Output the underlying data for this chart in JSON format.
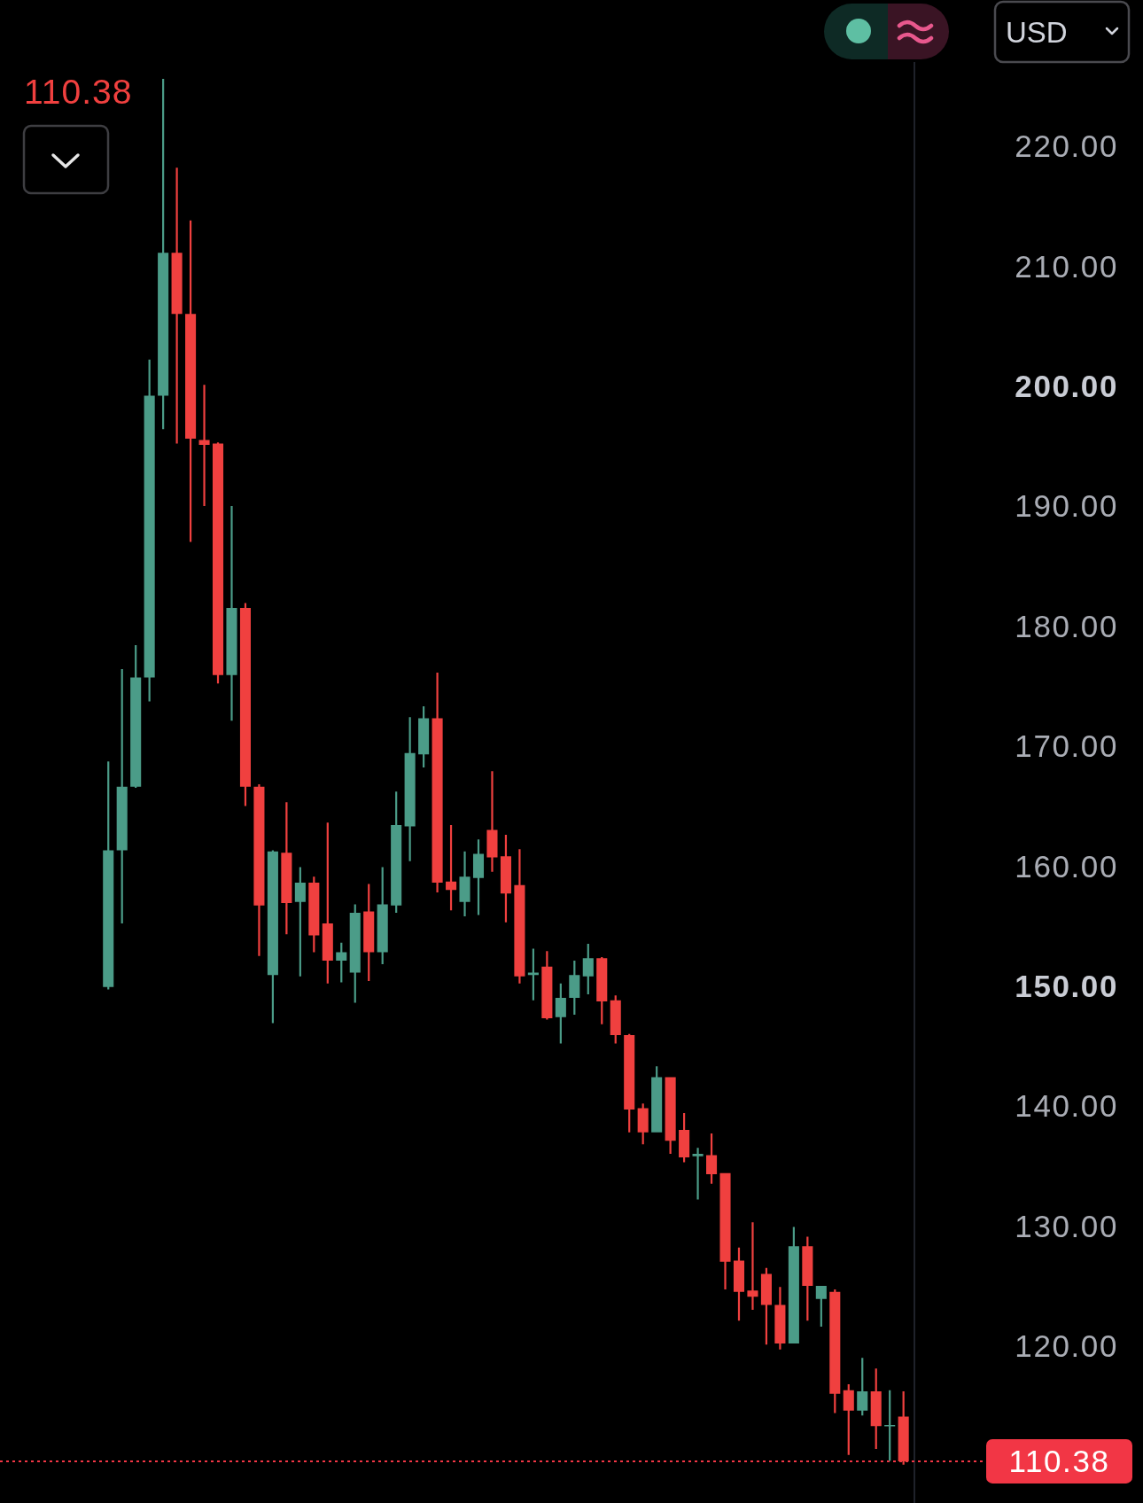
{
  "chart_data": {
    "type": "candlestick",
    "ylabel": "USD",
    "annotations": [
      "110.38"
    ],
    "categories": [
      null,
      null,
      null,
      null,
      null,
      null,
      null,
      null,
      null,
      null,
      null,
      null,
      null,
      null,
      null,
      null,
      null,
      null,
      null,
      null,
      null,
      null,
      null,
      null,
      null,
      null,
      null,
      null,
      null,
      null,
      null,
      null,
      null,
      null,
      null,
      null,
      null,
      null,
      null,
      null,
      null,
      null,
      null,
      null,
      null,
      null,
      null,
      null,
      null,
      null,
      null,
      null,
      null,
      null,
      null,
      null,
      null,
      null,
      null
    ],
    "ohlc": [
      [
        149.9,
        168.7,
        149.7,
        161.3
      ],
      [
        161.3,
        176.4,
        155.2,
        166.6
      ],
      [
        166.6,
        178.4,
        166.5,
        175.7
      ],
      [
        175.7,
        202.2,
        173.7,
        199.2
      ],
      [
        199.2,
        225.6,
        196.4,
        211.1
      ],
      [
        211.1,
        218.2,
        195.2,
        206.0
      ],
      [
        206.0,
        213.8,
        187.0,
        195.6
      ],
      [
        195.5,
        200.1,
        190.0,
        195.1
      ],
      [
        195.2,
        195.3,
        175.2,
        175.9
      ],
      [
        175.9,
        190.0,
        172.1,
        181.5
      ],
      [
        181.5,
        181.9,
        165.0,
        166.6
      ],
      [
        166.6,
        166.8,
        152.5,
        156.7
      ],
      [
        150.9,
        161.3,
        146.9,
        161.2
      ],
      [
        161.1,
        165.3,
        154.3,
        156.9
      ],
      [
        157.0,
        159.9,
        150.8,
        158.6
      ],
      [
        158.6,
        159.1,
        152.8,
        154.2
      ],
      [
        155.2,
        163.6,
        150.2,
        152.1
      ],
      [
        152.1,
        153.6,
        150.3,
        152.8
      ],
      [
        151.1,
        156.8,
        148.6,
        156.1
      ],
      [
        156.2,
        158.5,
        150.4,
        152.8
      ],
      [
        152.8,
        159.9,
        151.8,
        156.8
      ],
      [
        156.7,
        166.2,
        156.1,
        163.4
      ],
      [
        163.3,
        172.4,
        160.4,
        169.4
      ],
      [
        169.3,
        173.3,
        168.2,
        172.3
      ],
      [
        172.3,
        176.1,
        157.8,
        158.6
      ],
      [
        158.7,
        163.4,
        156.3,
        158.0
      ],
      [
        157.0,
        161.2,
        155.8,
        159.1
      ],
      [
        159.0,
        162.2,
        155.9,
        161.0
      ],
      [
        163.0,
        167.9,
        159.5,
        160.7
      ],
      [
        160.8,
        162.6,
        155.3,
        157.7
      ],
      [
        158.4,
        161.4,
        150.2,
        150.8
      ],
      [
        150.9,
        153.1,
        148.8,
        151.1
      ],
      [
        151.6,
        152.9,
        147.2,
        147.3
      ],
      [
        147.4,
        150.2,
        145.2,
        149.0
      ],
      [
        149.0,
        152.1,
        147.6,
        150.9
      ],
      [
        150.8,
        153.5,
        149.3,
        152.3
      ],
      [
        152.3,
        152.4,
        146.8,
        148.7
      ],
      [
        148.8,
        149.2,
        145.2,
        145.9
      ],
      [
        145.9,
        146.0,
        137.8,
        139.7
      ],
      [
        139.8,
        140.2,
        136.8,
        137.8
      ],
      [
        137.8,
        143.3,
        137.8,
        142.4
      ],
      [
        142.4,
        142.4,
        136.0,
        137.1
      ],
      [
        138.0,
        139.4,
        135.3,
        135.7
      ],
      [
        135.8,
        136.5,
        132.2,
        136.0
      ],
      [
        135.9,
        137.7,
        133.5,
        134.3
      ],
      [
        134.4,
        134.4,
        124.7,
        127.0
      ],
      [
        127.1,
        128.2,
        122.1,
        124.5
      ],
      [
        124.6,
        130.3,
        123.0,
        124.1
      ],
      [
        126.0,
        126.5,
        120.1,
        123.4
      ],
      [
        123.4,
        124.9,
        119.7,
        120.2
      ],
      [
        120.2,
        129.9,
        120.2,
        128.3
      ],
      [
        128.3,
        129.1,
        122.1,
        125.0
      ],
      [
        123.9,
        125.0,
        121.6,
        125.0
      ],
      [
        124.5,
        124.7,
        114.4,
        116.0
      ],
      [
        116.3,
        116.8,
        110.9,
        114.6
      ],
      [
        114.6,
        119.0,
        114.2,
        116.2
      ],
      [
        116.2,
        118.1,
        111.4,
        113.3
      ],
      [
        113.3,
        116.3,
        110.4,
        113.4
      ],
      [
        114.1,
        116.2,
        110.1,
        110.38
      ]
    ],
    "colors": [
      "#4b9c88",
      "#4b9c88",
      "#4b9c88",
      "#4b9c88",
      "#4b9c88",
      "#f0403f",
      "#f0403f",
      "#f0403f",
      "#f0403f",
      "#4b9c88",
      "#f0403f",
      "#f0403f",
      "#4b9c88",
      "#f0403f",
      "#4b9c88",
      "#f0403f",
      "#f0403f",
      "#4b9c88",
      "#4b9c88",
      "#f0403f",
      "#4b9c88",
      "#4b9c88",
      "#4b9c88",
      "#4b9c88",
      "#f0403f",
      "#f0403f",
      "#4b9c88",
      "#4b9c88",
      "#f0403f",
      "#f0403f",
      "#f0403f",
      "#4b9c88",
      "#f0403f",
      "#4b9c88",
      "#4b9c88",
      "#4b9c88",
      "#f0403f",
      "#f0403f",
      "#f0403f",
      "#f0403f",
      "#4b9c88",
      "#f0403f",
      "#f0403f",
      "#4b9c88",
      "#f0403f",
      "#f0403f",
      "#f0403f",
      "#f0403f",
      "#f0403f",
      "#f0403f",
      "#4b9c88",
      "#f0403f",
      "#4b9c88",
      "#f0403f",
      "#f0403f",
      "#4b9c88",
      "#f0403f",
      "#4b9c88",
      "#f0403f"
    ],
    "ylim": [
      106.9,
      227
    ],
    "yticks": [
      {
        "value": 220,
        "label": "220.00"
      },
      {
        "value": 210,
        "label": "210.00"
      },
      {
        "value": 200,
        "label": "200.00"
      },
      {
        "value": 190,
        "label": "190.00"
      },
      {
        "value": 180,
        "label": "180.00"
      },
      {
        "value": 170,
        "label": "170.00"
      },
      {
        "value": 160,
        "label": "160.00"
      },
      {
        "value": 150,
        "label": "150.00"
      },
      {
        "value": 140,
        "label": "140.00"
      },
      {
        "value": 130,
        "label": "130.00"
      },
      {
        "value": 120,
        "label": "120.00"
      }
    ],
    "tick_labels": "y",
    "ref_lines": [
      {
        "axis": "y",
        "value": 110.38,
        "label": "110.38",
        "color": "#f23645",
        "line_style": "dotted"
      }
    ]
  }
}
